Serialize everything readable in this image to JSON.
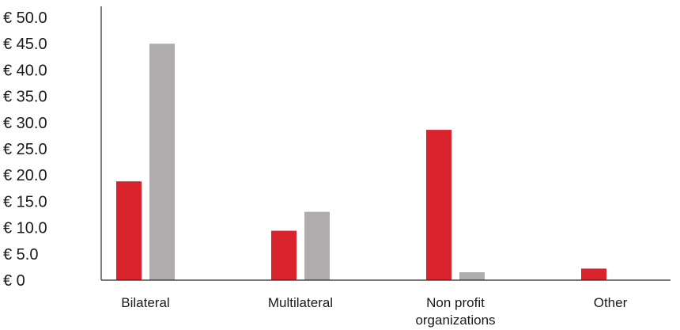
{
  "chart_data": {
    "type": "bar",
    "categories": [
      "Bilateral",
      "Multilateral",
      "Non profit organizations",
      "Other"
    ],
    "category_label_lines": [
      [
        "Bilateral"
      ],
      [
        "Multilateral"
      ],
      [
        "Non profit",
        "organizations"
      ],
      [
        "Other"
      ]
    ],
    "series": [
      {
        "color": "#d9232d",
        "values": [
          18.8,
          9.4,
          28.6,
          2.2
        ]
      },
      {
        "color": "#aeacad",
        "values": [
          45.0,
          13.0,
          1.5,
          0
        ]
      }
    ],
    "y_ticks": [
      "€ 0",
      "€ 5.0",
      "€ 10.0",
      "€ 15.0",
      "€ 20.0",
      "€ 25.0",
      "€ 30.0",
      "€ 35.0",
      "€ 40.0",
      "€ 45.0",
      "€ 50.0"
    ],
    "ylim": [
      0,
      50
    ],
    "grid": false,
    "title": "",
    "xlabel": "",
    "ylabel": ""
  }
}
